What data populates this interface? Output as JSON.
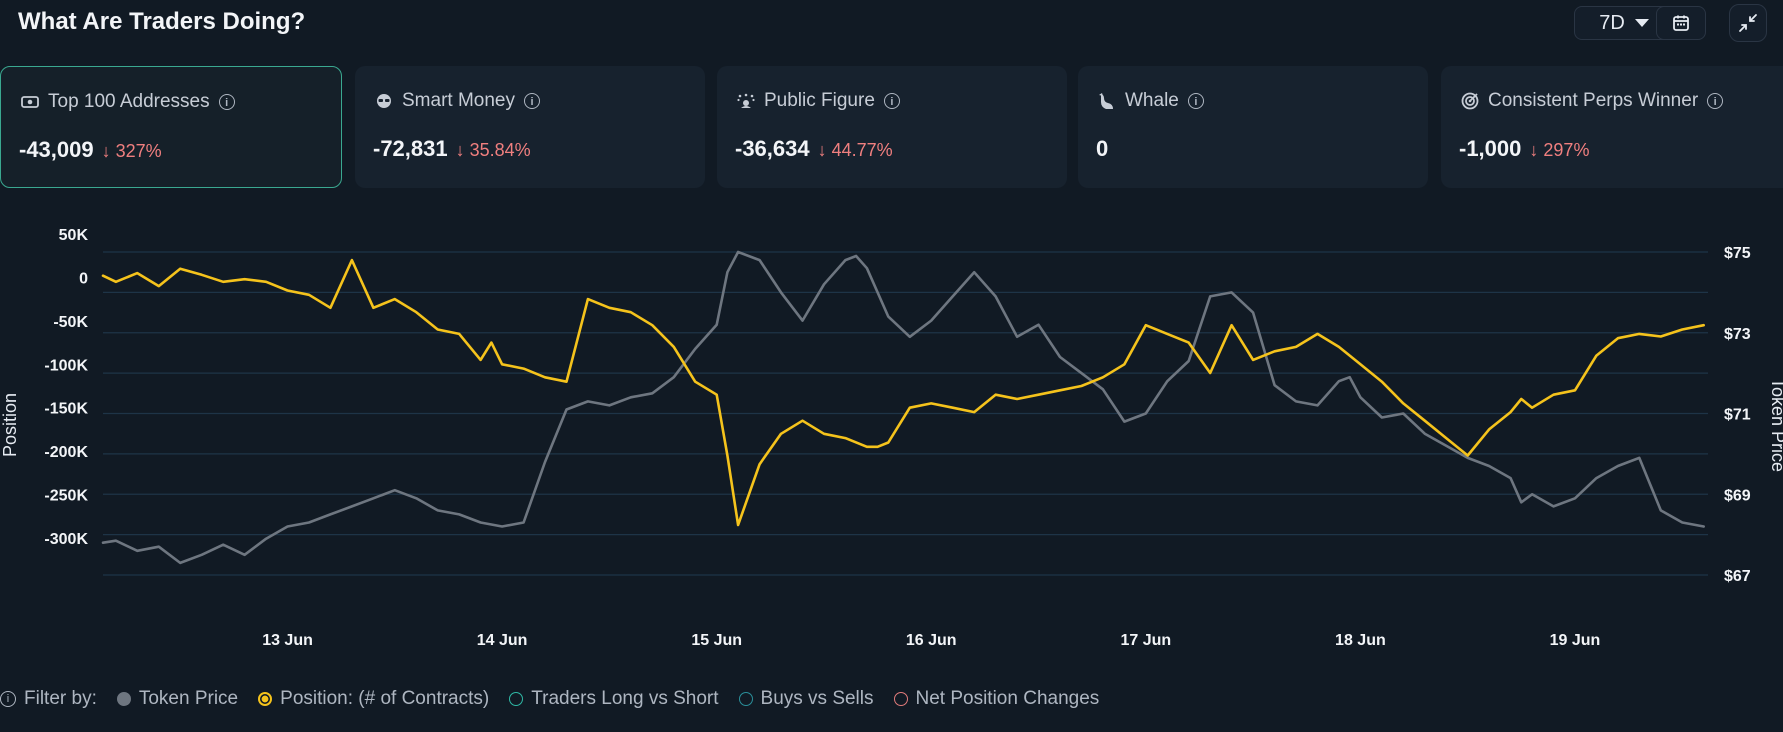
{
  "header": {
    "title": "What Are Traders Doing?",
    "range_label": "7D"
  },
  "cards": [
    {
      "label": "Top 100 Addresses",
      "icon": "money-icon",
      "value": "-43,009",
      "change": "327%",
      "direction": "down",
      "active": true
    },
    {
      "label": "Smart Money",
      "icon": "sunglasses-icon",
      "value": "-72,831",
      "change": "35.84%",
      "direction": "down",
      "active": false
    },
    {
      "label": "Public Figure",
      "icon": "spotlight-icon",
      "value": "-36,634",
      "change": "44.77%",
      "direction": "down",
      "active": false
    },
    {
      "label": "Whale",
      "icon": "whale-icon",
      "value": "0",
      "change": "",
      "direction": "none",
      "active": false
    },
    {
      "label": "Consistent Perps Winner",
      "icon": "target-icon",
      "value": "-1,000",
      "change": "297%",
      "direction": "down",
      "active": false
    }
  ],
  "legend": {
    "filter_label": "Filter by:",
    "items": [
      {
        "label": "Token Price",
        "color": "#6e7680",
        "filled": true
      },
      {
        "label": "Position: (# of Contracts)",
        "color": "#f5c31c",
        "filled": true
      },
      {
        "label": "Traders Long vs Short",
        "color": "#2fb8a5",
        "filled": false
      },
      {
        "label": "Buys vs Sells",
        "color": "#2a8f9a",
        "filled": false
      },
      {
        "label": "Net Position Changes",
        "color": "#e07a7a",
        "filled": false
      }
    ]
  },
  "chart_data": {
    "type": "line",
    "xlabel": "",
    "ylabel_left": "Position",
    "ylabel_right": "Token Price",
    "x_ticks": [
      "13 Jun",
      "14 Jun",
      "15 Jun",
      "16 Jun",
      "17 Jun",
      "18 Jun",
      "19 Jun"
    ],
    "x_range_days": [
      12.14,
      19.62
    ],
    "y_left_ticks": [
      "50K",
      "0",
      "-50K",
      "-100K",
      "-150K",
      "-200K",
      "-250K",
      "-300K"
    ],
    "y_left_range": [
      -300000,
      50000
    ],
    "y_right_ticks": [
      "$75",
      "$73",
      "$71",
      "$69",
      "$67"
    ],
    "y_right_range": [
      67,
      75
    ],
    "grid": true,
    "series": [
      {
        "name": "Token Price",
        "axis": "right",
        "color": "#6e7680",
        "x": [
          12.14,
          12.2,
          12.3,
          12.4,
          12.5,
          12.6,
          12.7,
          12.8,
          12.9,
          13.0,
          13.1,
          13.2,
          13.3,
          13.4,
          13.5,
          13.6,
          13.7,
          13.8,
          13.9,
          14.0,
          14.1,
          14.2,
          14.3,
          14.4,
          14.5,
          14.6,
          14.7,
          14.8,
          14.9,
          15.0,
          15.05,
          15.1,
          15.2,
          15.3,
          15.4,
          15.5,
          15.6,
          15.65,
          15.7,
          15.8,
          15.9,
          16.0,
          16.1,
          16.2,
          16.3,
          16.4,
          16.5,
          16.6,
          16.7,
          16.8,
          16.9,
          17.0,
          17.1,
          17.2,
          17.3,
          17.4,
          17.5,
          17.6,
          17.7,
          17.8,
          17.85,
          17.9,
          17.95,
          18.0,
          18.1,
          18.2,
          18.3,
          18.4,
          18.5,
          18.6,
          18.7,
          18.75,
          18.8,
          18.9,
          19.0,
          19.1,
          19.2,
          19.3,
          19.4,
          19.5,
          19.6
        ],
        "y": [
          67.8,
          67.85,
          67.6,
          67.7,
          67.3,
          67.5,
          67.75,
          67.5,
          67.9,
          68.2,
          68.3,
          68.5,
          68.7,
          68.9,
          69.1,
          68.9,
          68.6,
          68.5,
          68.3,
          68.2,
          68.3,
          69.8,
          71.1,
          71.3,
          71.2,
          71.4,
          71.5,
          71.9,
          72.6,
          73.2,
          74.5,
          75.0,
          74.8,
          74.0,
          73.3,
          74.2,
          74.8,
          74.9,
          74.6,
          73.4,
          72.9,
          73.3,
          73.9,
          74.5,
          73.9,
          72.9,
          73.2,
          72.4,
          72.0,
          71.6,
          70.8,
          71.0,
          71.8,
          72.3,
          73.9,
          74.0,
          73.5,
          71.7,
          71.3,
          71.2,
          71.5,
          71.8,
          71.9,
          71.4,
          70.9,
          71.0,
          70.5,
          70.2,
          69.9,
          69.7,
          69.4,
          68.8,
          69.0,
          68.7,
          68.9,
          69.4,
          69.7,
          69.9,
          68.6,
          68.3,
          68.2
        ]
      },
      {
        "name": "Position: (# of Contracts)",
        "axis": "left",
        "color": "#f5c31c",
        "x": [
          12.14,
          12.2,
          12.3,
          12.4,
          12.5,
          12.6,
          12.7,
          12.8,
          12.9,
          13.0,
          13.1,
          13.2,
          13.3,
          13.4,
          13.5,
          13.6,
          13.7,
          13.8,
          13.9,
          13.95,
          14.0,
          14.1,
          14.2,
          14.3,
          14.4,
          14.5,
          14.6,
          14.7,
          14.8,
          14.9,
          15.0,
          15.05,
          15.1,
          15.2,
          15.3,
          15.4,
          15.5,
          15.6,
          15.7,
          15.75,
          15.8,
          15.9,
          16.0,
          16.1,
          16.2,
          16.3,
          16.4,
          16.5,
          16.6,
          16.7,
          16.8,
          16.9,
          17.0,
          17.1,
          17.2,
          17.3,
          17.4,
          17.5,
          17.6,
          17.7,
          17.8,
          17.9,
          18.0,
          18.1,
          18.2,
          18.3,
          18.4,
          18.5,
          18.6,
          18.7,
          18.75,
          18.8,
          18.9,
          19.0,
          19.1,
          19.2,
          19.3,
          19.4,
          19.5,
          19.6
        ],
        "y": [
          2000,
          -5000,
          5000,
          -10000,
          10000,
          3000,
          -5000,
          -2000,
          -5000,
          -15000,
          -20000,
          -35000,
          20000,
          -35000,
          -25000,
          -40000,
          -60000,
          -65000,
          -95000,
          -75000,
          -100000,
          -105000,
          -115000,
          -120000,
          -25000,
          -35000,
          -40000,
          -55000,
          -80000,
          -120000,
          -135000,
          -205000,
          -285000,
          -215000,
          -180000,
          -165000,
          -180000,
          -185000,
          -195000,
          -195000,
          -190000,
          -150000,
          -145000,
          -150000,
          -155000,
          -135000,
          -140000,
          -135000,
          -130000,
          -125000,
          -115000,
          -100000,
          -55000,
          -65000,
          -75000,
          -110000,
          -55000,
          -95000,
          -85000,
          -80000,
          -65000,
          -80000,
          -100000,
          -120000,
          -145000,
          -165000,
          -185000,
          -205000,
          -175000,
          -155000,
          -140000,
          -150000,
          -135000,
          -130000,
          -90000,
          -70000,
          -65000,
          -68000,
          -60000,
          -55000
        ]
      }
    ]
  }
}
